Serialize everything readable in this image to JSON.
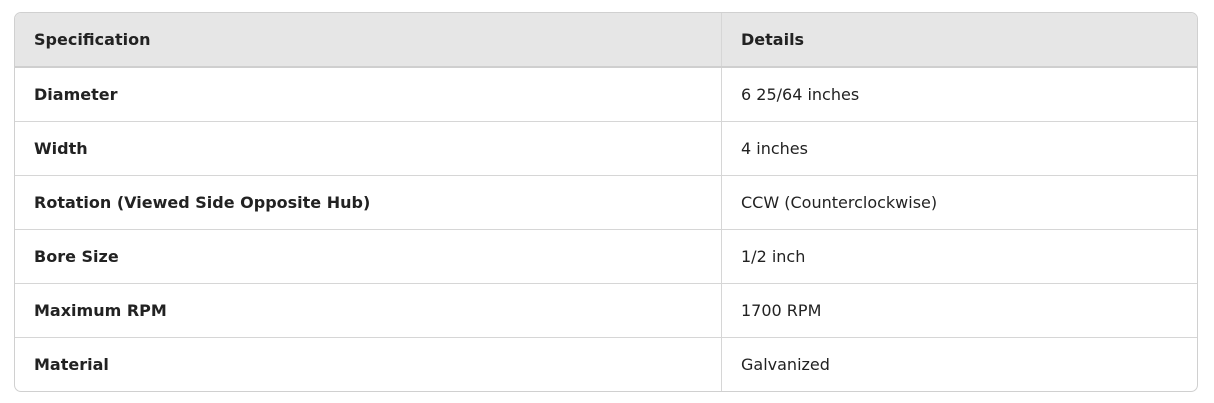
{
  "table": {
    "headers": [
      "Specification",
      "Details"
    ],
    "rows": [
      [
        "Diameter",
        "6 25/64 inches"
      ],
      [
        "Width",
        "4 inches"
      ],
      [
        "Rotation (Viewed Side Opposite Hub)",
        "CCW (Counterclockwise)"
      ],
      [
        "Bore Size",
        "1/2 inch"
      ],
      [
        "Maximum RPM",
        "1700 RPM"
      ],
      [
        "Material",
        "Galvanized"
      ]
    ]
  }
}
